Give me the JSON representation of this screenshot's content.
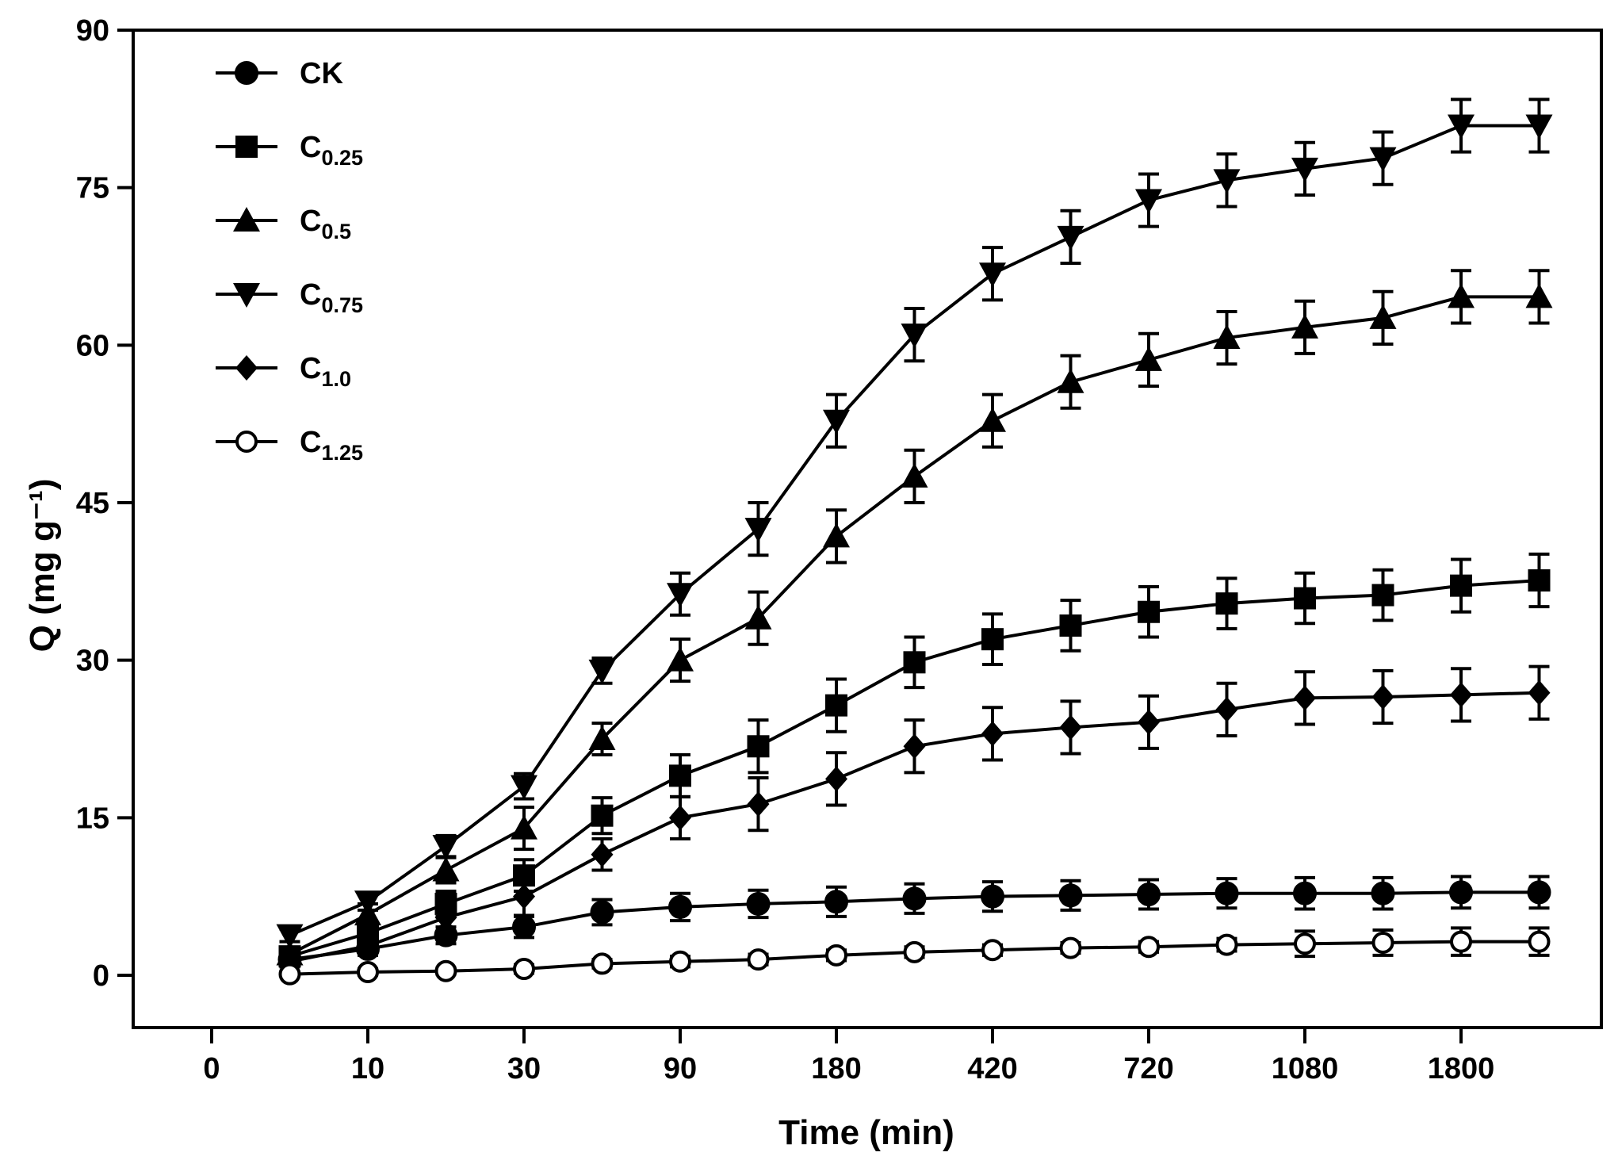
{
  "chart_data": {
    "type": "line",
    "title": "",
    "xlabel": "Time (min)",
    "ylabel": "Q (mg g⁻¹)",
    "ylim": [
      0,
      90
    ],
    "yticks": [
      0,
      15,
      30,
      45,
      60,
      75,
      90
    ],
    "x_tick_labels": [
      "0",
      "10",
      "30",
      "90",
      "180",
      "420",
      "720",
      "1080",
      "1800"
    ],
    "x": [
      5,
      10,
      20,
      30,
      60,
      90,
      120,
      180,
      300,
      420,
      540,
      720,
      900,
      1080,
      1440,
      1800,
      2160
    ],
    "grid": false,
    "legend_position": "top-left",
    "series": [
      {
        "name": "CK",
        "sub": "",
        "marker": "circle",
        "values": [
          1.5,
          2.5,
          3.8,
          4.6,
          6.0,
          6.5,
          6.8,
          7.0,
          7.3,
          7.5,
          7.6,
          7.7,
          7.8,
          7.8,
          7.8,
          7.9,
          7.9
        ],
        "errors": [
          0.5,
          0.6,
          0.8,
          1.0,
          1.2,
          1.3,
          1.3,
          1.4,
          1.4,
          1.4,
          1.4,
          1.4,
          1.4,
          1.5,
          1.5,
          1.5,
          1.5
        ]
      },
      {
        "name": "C",
        "sub": "0.25",
        "marker": "square",
        "values": [
          1.8,
          4.0,
          6.8,
          9.5,
          15.2,
          19.0,
          21.8,
          25.7,
          29.8,
          32.0,
          33.3,
          34.6,
          35.4,
          35.9,
          36.2,
          37.1,
          37.6
        ],
        "errors": [
          0.6,
          0.8,
          1.2,
          1.5,
          1.7,
          2.0,
          2.5,
          2.5,
          2.4,
          2.4,
          2.4,
          2.4,
          2.4,
          2.4,
          2.4,
          2.5,
          2.5
        ]
      },
      {
        "name": "C",
        "sub": "0.5",
        "marker": "triangle-up",
        "values": [
          2.0,
          5.8,
          10.0,
          14.0,
          22.5,
          30.0,
          34.0,
          41.8,
          47.5,
          52.8,
          56.5,
          58.6,
          60.7,
          61.7,
          62.6,
          64.6,
          64.6
        ],
        "errors": [
          0.6,
          1.0,
          1.2,
          2.0,
          1.5,
          2.0,
          2.5,
          2.5,
          2.5,
          2.5,
          2.5,
          2.5,
          2.5,
          2.5,
          2.5,
          2.5,
          2.5
        ]
      },
      {
        "name": "C",
        "sub": "0.75",
        "marker": "triangle-down",
        "values": [
          3.8,
          7.0,
          12.3,
          18.0,
          29.0,
          36.3,
          42.5,
          52.8,
          61.0,
          66.8,
          70.3,
          73.8,
          75.7,
          76.8,
          77.8,
          80.9,
          80.9
        ],
        "errors": [
          0.6,
          0.8,
          1.0,
          1.2,
          1.2,
          2.0,
          2.5,
          2.5,
          2.5,
          2.5,
          2.5,
          2.5,
          2.5,
          2.5,
          2.5,
          2.5,
          2.5
        ]
      },
      {
        "name": "C",
        "sub": "1.0",
        "marker": "diamond",
        "values": [
          1.3,
          2.8,
          5.5,
          7.5,
          11.5,
          15.0,
          16.3,
          18.7,
          21.8,
          23.0,
          23.6,
          24.1,
          25.3,
          26.4,
          26.5,
          26.7,
          26.9
        ],
        "errors": [
          0.5,
          0.8,
          1.5,
          1.8,
          1.5,
          2.0,
          2.5,
          2.5,
          2.5,
          2.5,
          2.5,
          2.5,
          2.5,
          2.5,
          2.5,
          2.5,
          2.5
        ]
      },
      {
        "name": "C",
        "sub": "1.25",
        "marker": "circle-open",
        "values": [
          0.1,
          0.3,
          0.4,
          0.6,
          1.1,
          1.3,
          1.5,
          1.9,
          2.2,
          2.4,
          2.6,
          2.7,
          2.9,
          3.0,
          3.1,
          3.2,
          3.2
        ],
        "errors": [
          0.2,
          0.3,
          0.3,
          0.4,
          0.4,
          0.5,
          0.5,
          0.5,
          0.5,
          0.5,
          0.5,
          0.5,
          0.6,
          1.2,
          1.2,
          1.3,
          1.3
        ]
      }
    ]
  }
}
